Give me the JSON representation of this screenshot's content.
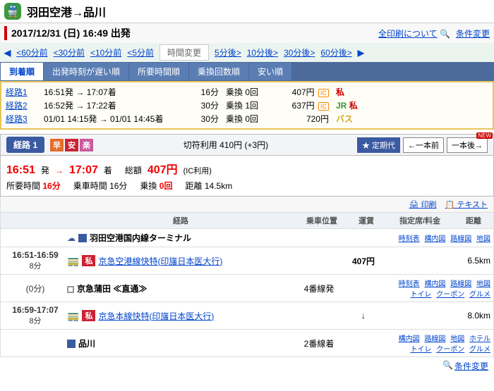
{
  "header": {
    "title": "羽田空港→品川"
  },
  "date": {
    "text": "2017/12/31 (日)  16:49 出発",
    "print": "全印刷について",
    "modify": "条件変更"
  },
  "timeNav": {
    "back": [
      "<60分前",
      "<30分前",
      "<10分前",
      "<5分前"
    ],
    "change": "時間変更",
    "fwd": [
      "5分後>",
      "10分後>",
      "30分後>",
      "60分後>"
    ]
  },
  "sortTabs": [
    "到着順",
    "出発時刻が遅い順",
    "所要時間順",
    "乗換回数順",
    "安い順"
  ],
  "summary": [
    {
      "idx": "経路1",
      "time": "16:51発 → 17:07着",
      "dur": "16分",
      "trans": "乗換 0回",
      "fare": "407円",
      "ic": true,
      "lines": [
        {
          "t": "私",
          "cls": "c-ku"
        }
      ]
    },
    {
      "idx": "経路2",
      "time": "16:52発 → 17:22着",
      "dur": "30分",
      "trans": "乗換 1回",
      "fare": "637円",
      "ic": true,
      "lines": [
        {
          "t": "JR",
          "cls": "c-jr"
        },
        {
          "t": "私",
          "cls": "c-ku"
        }
      ]
    },
    {
      "idx": "経路3",
      "time": "01/01 14:15発 → 01/01 14:45着",
      "dur": "30分",
      "trans": "乗換 0回",
      "fare": "720円",
      "ic": false,
      "lines": [
        {
          "t": "バス",
          "cls": "c-bus"
        }
      ]
    }
  ],
  "route": {
    "label": "経路 1",
    "tags": [
      "早",
      "安",
      "楽"
    ],
    "ticket": "切符利用 410円  (+3円)",
    "teiki": "定期代",
    "prev": "←一本前",
    "next": "一本後→",
    "dep": "16:51",
    "depSuf": "発",
    "arr": "17:07",
    "arrSuf": "着",
    "sougaku": "総額",
    "fare": "407円",
    "fareNote": "(IC利用)",
    "stats": {
      "dur": "所要時間",
      "durV": "16分",
      "ride": "乗車時間",
      "rideV": "16分",
      "trans": "乗換",
      "transV": "0回",
      "dist": "距離",
      "distV": "14.5km"
    },
    "print": "印刷",
    "text": "テキスト"
  },
  "segHead": [
    "",
    "経路",
    "乗車位置",
    "運賃",
    "指定席/料金",
    "距離"
  ],
  "segments": [
    {
      "type": "station",
      "name": "羽田空港国内線ターミナル",
      "links": [
        "時刻表",
        "構内図",
        "路線図",
        "地図"
      ]
    },
    {
      "type": "line",
      "t1": "16:51-16:59",
      "dur": "8分",
      "lineLabel": "私",
      "desc": "京急空港線快特(印旛日本医大行)",
      "fare": "407円",
      "dist": "6.5km"
    },
    {
      "type": "station",
      "name": "京急蒲田 ≪直通≫",
      "t": "(0分)",
      "pos": "4番線発",
      "links": [
        "時刻表",
        "構内図",
        "路線図",
        "地図",
        "トイレ",
        "クーポン",
        "グルメ"
      ],
      "through": true
    },
    {
      "type": "line",
      "t1": "16:59-17:07",
      "dur": "8分",
      "lineLabel": "私",
      "desc": "京急本線快特(印旛日本医大行)",
      "fare": "↓",
      "dist": "8.0km"
    },
    {
      "type": "station",
      "name": "品川",
      "pos": "2番線着",
      "links": [
        "構内図",
        "路線図",
        "地図",
        "ホテル",
        "トイレ",
        "クーポン",
        "グルメ"
      ],
      "solid": true
    }
  ],
  "footer": {
    "modify": "条件変更"
  }
}
